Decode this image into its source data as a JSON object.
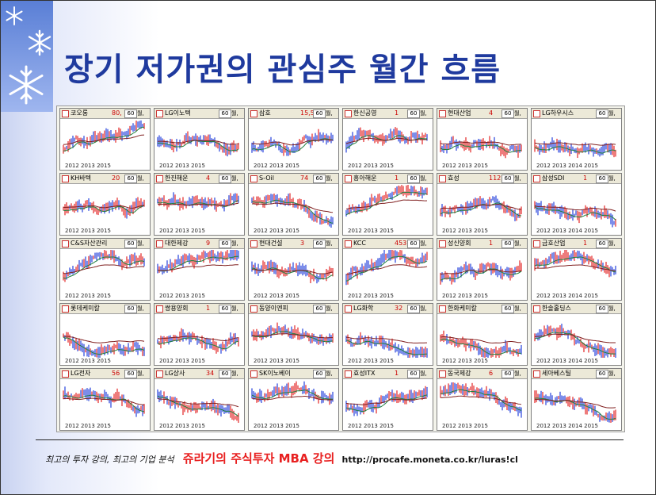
{
  "title": "장기 저가권의 관심주 월간 흐름",
  "footer": {
    "tagline": "최고의 투자 강의, 최고의 기업 분석",
    "course": "쥬라기의 주식투자 MBA 강의",
    "url": "http://procafe.moneta.co.kr/luras!cl"
  },
  "panel_common": {
    "period": "60",
    "week_label": "월,"
  },
  "panels": [
    {
      "name": "코오롱",
      "value": "80,",
      "x_labels": "2012 2013     2015",
      "trend": "up"
    },
    {
      "name": "LG이노텍",
      "value": "",
      "x_labels": "2012 2013     2015",
      "trend": "flat"
    },
    {
      "name": "삼호",
      "value": "15,50",
      "x_labels": "2012 2013     2015",
      "trend": "up"
    },
    {
      "name": "한신공영",
      "value": "1",
      "x_labels": "2012 2013     2015",
      "trend": "up"
    },
    {
      "name": "현대산업",
      "value": "4",
      "x_labels": "2012 2013     2015",
      "trend": "up"
    },
    {
      "name": "LG하우시스",
      "value": "",
      "x_labels": "2012 2013 2014 2015",
      "trend": "up"
    },
    {
      "name": "KH바텍",
      "value": "20",
      "x_labels": "2012 2013     2015",
      "trend": "flat"
    },
    {
      "name": "한진해운",
      "value": "4",
      "x_labels": "2012 2013     2015",
      "trend": "down"
    },
    {
      "name": "S-Oil",
      "value": "74",
      "x_labels": "2012 2013     2015",
      "trend": "down"
    },
    {
      "name": "흥아해운",
      "value": "1",
      "x_labels": "2012 2013     2015",
      "trend": "up"
    },
    {
      "name": "효성",
      "value": "112,0",
      "x_labels": "2012 2013     2015",
      "trend": "up"
    },
    {
      "name": "삼성SDI",
      "value": "1",
      "x_labels": "2012 2013 2014 2015",
      "trend": "flat"
    },
    {
      "name": "C&S자산관리",
      "value": "",
      "x_labels": "2012 2013     2015",
      "trend": "up"
    },
    {
      "name": "대한제강",
      "value": "9",
      "x_labels": "2012 2013     2015",
      "trend": "flat"
    },
    {
      "name": "현대건설",
      "value": "3",
      "x_labels": "2012 2013     2015",
      "trend": "down"
    },
    {
      "name": "KCC",
      "value": "453,5",
      "x_labels": "2012 2013     2015",
      "trend": "up"
    },
    {
      "name": "성신양회",
      "value": "1",
      "x_labels": "2012 2013     2015",
      "trend": "up"
    },
    {
      "name": "금호산업",
      "value": "1",
      "x_labels": "2012 2013 2014 2015",
      "trend": "down"
    },
    {
      "name": "롯데케미칼",
      "value": "",
      "x_labels": "2012 2013     2015",
      "trend": "flat"
    },
    {
      "name": "쌍용양회",
      "value": "1",
      "x_labels": "2012 2013     2015",
      "trend": "up"
    },
    {
      "name": "동양이엔피",
      "value": "",
      "x_labels": "2012 2013     2015",
      "trend": "flat"
    },
    {
      "name": "LG화학",
      "value": "32",
      "x_labels": "2012 2013     2015",
      "trend": "flat"
    },
    {
      "name": "한화케미칼",
      "value": "",
      "x_labels": "2012 2013     2015",
      "trend": "flat"
    },
    {
      "name": "한솔홀딩스",
      "value": "",
      "x_labels": "2012 2013 2014 2015",
      "trend": "flat"
    },
    {
      "name": "LG전자",
      "value": "56",
      "x_labels": "2012 2013     2015",
      "trend": "down"
    },
    {
      "name": "LG상사",
      "value": "34",
      "x_labels": "2012 2013     2015",
      "trend": "down"
    },
    {
      "name": "SK이노베이",
      "value": "",
      "x_labels": "2012 2013     2015",
      "trend": "down"
    },
    {
      "name": "효성ITX",
      "value": "1",
      "x_labels": "2012 2013     2015",
      "trend": "up"
    },
    {
      "name": "동국제강",
      "value": "6",
      "x_labels": "2012 2013     2015",
      "trend": "down"
    },
    {
      "name": "세아베스틸",
      "value": "",
      "x_labels": "2012 2013 2014 2015",
      "trend": "down"
    }
  ]
}
